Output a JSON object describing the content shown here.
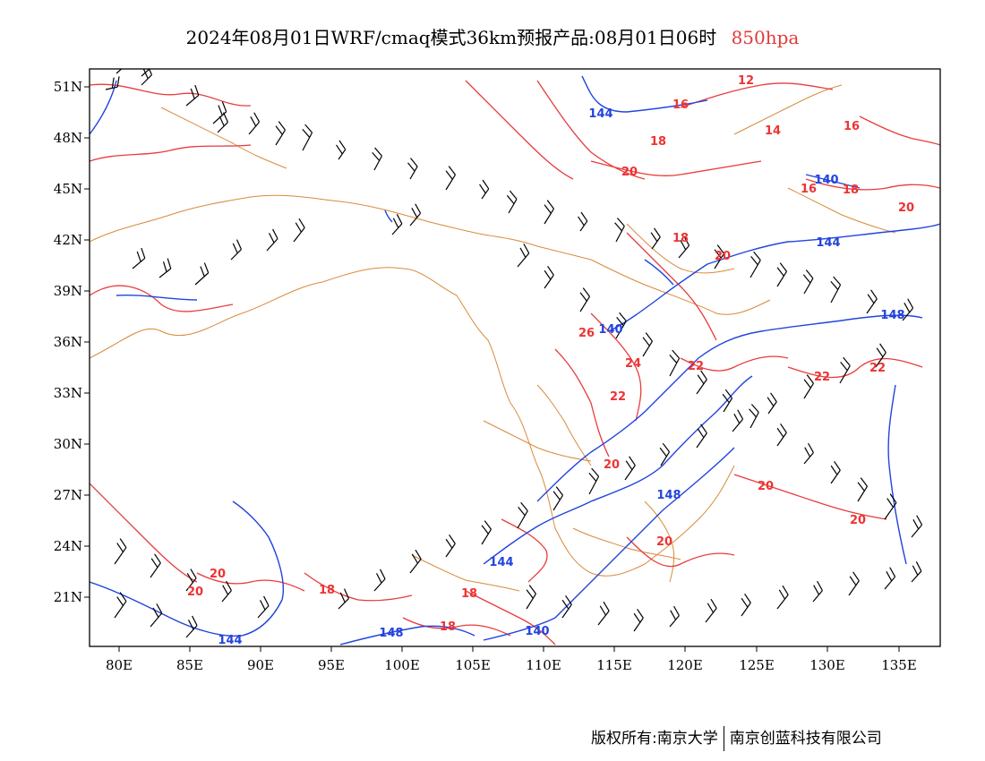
{
  "title": {
    "main": "2024年08月01日WRF/cmaq模式36km预报产品:08月01日06时",
    "level": "850hpa"
  },
  "colors": {
    "temperature_isoline": "#e83c3c",
    "geopotential_isoline": "#2244dd",
    "boundary": "#d98a3a",
    "wind_barb": "#000000"
  },
  "map": {
    "lon_ticks": [
      "80E",
      "85E",
      "90E",
      "95E",
      "100E",
      "105E",
      "110E",
      "115E",
      "120E",
      "125E",
      "130E",
      "135E"
    ],
    "lat_ticks": [
      "51N",
      "48N",
      "45N",
      "42N",
      "39N",
      "36N",
      "33N",
      "30N",
      "27N",
      "24N",
      "21N"
    ],
    "temperature_labels": [
      "12",
      "16",
      "14",
      "16",
      "18",
      "18",
      "20",
      "16",
      "18",
      "20",
      "20",
      "18",
      "26",
      "24",
      "22",
      "22",
      "22",
      "22",
      "20",
      "20",
      "20",
      "20",
      "20",
      "18",
      "18",
      "20"
    ],
    "geopotential_labels": [
      "144",
      "140",
      "144",
      "140",
      "148",
      "148",
      "144",
      "144",
      "148",
      "140"
    ],
    "barbs": [
      [
        118,
        100,
        12,
        15
      ],
      [
        130,
        82,
        42,
        20
      ],
      [
        158,
        95,
        45,
        18
      ],
      [
        158,
        85,
        42,
        20
      ],
      [
        208,
        118,
        40,
        20
      ],
      [
        238,
        138,
        42,
        22
      ],
      [
        243,
        148,
        45,
        18
      ],
      [
        278,
        150,
        50,
        20
      ],
      [
        308,
        162,
        58,
        22
      ],
      [
        338,
        168,
        62,
        25
      ],
      [
        378,
        178,
        55,
        15
      ],
      [
        418,
        190,
        62,
        20
      ],
      [
        458,
        200,
        60,
        18
      ],
      [
        498,
        212,
        58,
        22
      ],
      [
        538,
        222,
        55,
        15
      ],
      [
        568,
        238,
        60,
        20
      ],
      [
        608,
        250,
        58,
        22
      ],
      [
        648,
        258,
        55,
        15
      ],
      [
        688,
        270,
        62,
        22
      ],
      [
        728,
        278,
        55,
        18
      ],
      [
        758,
        288,
        50,
        20
      ],
      [
        798,
        300,
        58,
        22
      ],
      [
        838,
        310,
        60,
        25
      ],
      [
        868,
        320,
        58,
        22
      ],
      [
        898,
        328,
        60,
        22
      ],
      [
        928,
        338,
        62,
        25
      ],
      [
        968,
        350,
        55,
        22
      ],
      [
        1008,
        358,
        50,
        20
      ],
      [
        148,
        300,
        40,
        20
      ],
      [
        178,
        310,
        38,
        18
      ],
      [
        218,
        318,
        42,
        22
      ],
      [
        258,
        290,
        45,
        18
      ],
      [
        298,
        280,
        48,
        20
      ],
      [
        328,
        270,
        52,
        22
      ],
      [
        438,
        262,
        48,
        18
      ],
      [
        458,
        252,
        50,
        20
      ],
      [
        578,
        298,
        50,
        22
      ],
      [
        608,
        322,
        55,
        20
      ],
      [
        648,
        348,
        58,
        22
      ],
      [
        688,
        378,
        60,
        25
      ],
      [
        718,
        398,
        58,
        22
      ],
      [
        748,
        420,
        62,
        25
      ],
      [
        778,
        440,
        55,
        22
      ],
      [
        808,
        460,
        58,
        20
      ],
      [
        838,
        478,
        62,
        22
      ],
      [
        868,
        498,
        55,
        20
      ],
      [
        898,
        518,
        50,
        18
      ],
      [
        928,
        540,
        55,
        20
      ],
      [
        958,
        560,
        58,
        22
      ],
      [
        988,
        580,
        55,
        25
      ],
      [
        1018,
        600,
        50,
        20
      ],
      [
        128,
        630,
        55,
        25
      ],
      [
        168,
        645,
        55,
        22
      ],
      [
        208,
        660,
        52,
        20
      ],
      [
        248,
        672,
        50,
        18
      ],
      [
        288,
        690,
        48,
        20
      ],
      [
        378,
        680,
        45,
        18
      ],
      [
        418,
        660,
        48,
        20
      ],
      [
        458,
        640,
        52,
        22
      ],
      [
        498,
        622,
        55,
        20
      ],
      [
        538,
        608,
        58,
        22
      ],
      [
        578,
        590,
        60,
        25
      ],
      [
        618,
        570,
        58,
        22
      ],
      [
        658,
        552,
        62,
        25
      ],
      [
        698,
        536,
        55,
        22
      ],
      [
        738,
        520,
        58,
        20
      ],
      [
        778,
        500,
        55,
        22
      ],
      [
        818,
        482,
        50,
        20
      ],
      [
        858,
        462,
        55,
        18
      ],
      [
        898,
        445,
        58,
        22
      ],
      [
        938,
        428,
        60,
        25
      ],
      [
        978,
        410,
        55,
        22
      ],
      [
        128,
        690,
        55,
        25
      ],
      [
        168,
        700,
        50,
        22
      ],
      [
        208,
        712,
        48,
        20
      ],
      [
        588,
        680,
        58,
        22
      ],
      [
        628,
        690,
        55,
        20
      ],
      [
        668,
        698,
        52,
        22
      ],
      [
        708,
        705,
        55,
        20
      ],
      [
        748,
        700,
        50,
        18
      ],
      [
        788,
        695,
        52,
        22
      ],
      [
        828,
        688,
        55,
        20
      ],
      [
        868,
        680,
        52,
        22
      ],
      [
        908,
        672,
        50,
        18
      ],
      [
        948,
        665,
        55,
        22
      ],
      [
        988,
        658,
        50,
        20
      ],
      [
        1018,
        650,
        48,
        18
      ]
    ]
  },
  "footer": {
    "left": "版权所有:南京大学",
    "right": "南京创蓝科技有限公司"
  }
}
